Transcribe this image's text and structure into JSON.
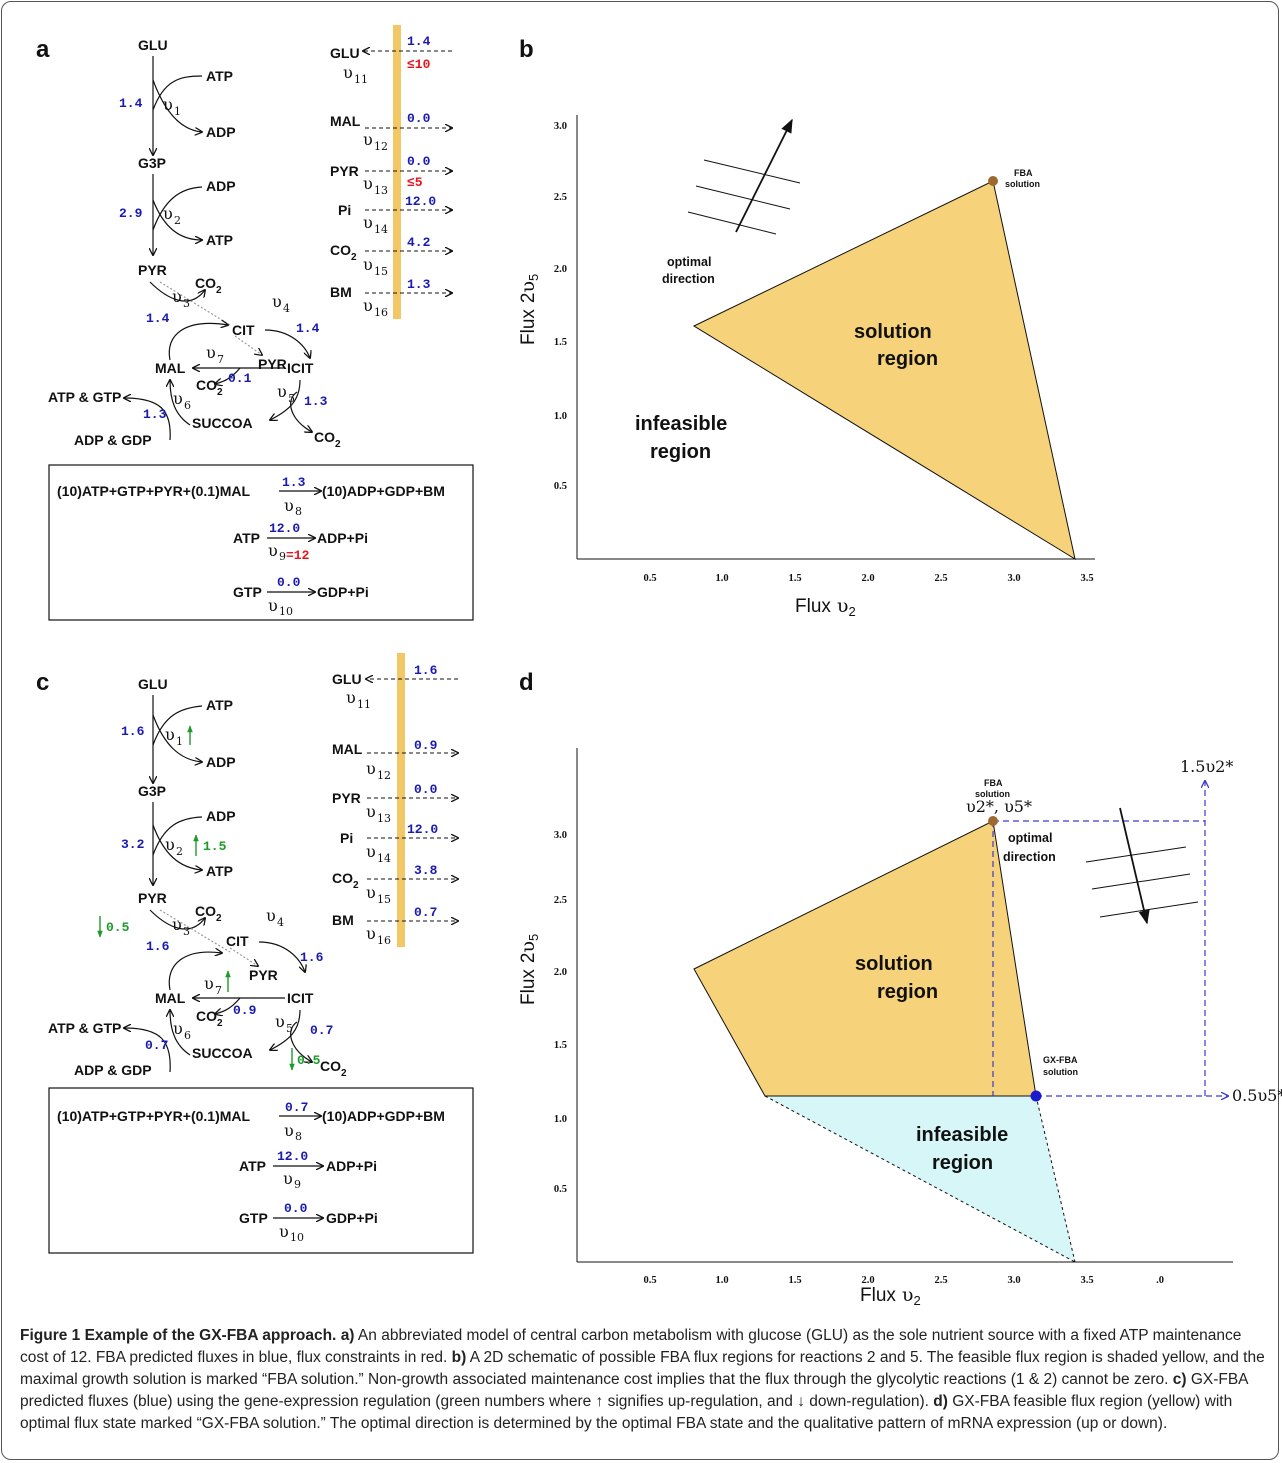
{
  "panels": {
    "a": "a",
    "b": "b",
    "c": "c",
    "d": "d"
  },
  "metabolites": {
    "glu": "GLU",
    "g3p": "G3P",
    "pyr": "PYR",
    "cit": "CIT",
    "icit": "ICIT",
    "mal": "MAL",
    "succoa": "SUCCOA",
    "atp": "ATP",
    "adp": "ADP",
    "co2": "CO",
    "co2_sub": "2",
    "atp_gtp": "ATP & GTP",
    "adp_gdp": "ADP & GDP",
    "pi": "Pi",
    "bm": "BM"
  },
  "nu": "υ",
  "reactions": {
    "r1": "1",
    "r2": "2",
    "r3": "3",
    "r4": "4",
    "r5": "5",
    "r6": "6",
    "r7": "7",
    "r8": "8",
    "r9": "9",
    "r10": "10",
    "r11": "11",
    "r12": "12",
    "r13": "13",
    "r14": "14",
    "r15": "15",
    "r16": "16"
  },
  "boxes": {
    "biomass_lhs": "(10)ATP+GTP+PYR+(0.1)MAL",
    "biomass_rhs": "(10)ADP+GDP+BM",
    "atp_lhs": "ATP",
    "atp_rhs": "ADP+Pi",
    "gtp_lhs": "GTP",
    "gtp_rhs": "GDP+Pi"
  },
  "panel_a": {
    "fluxes": {
      "v1": "1.4",
      "v2": "2.9",
      "v3": "1.4",
      "v4": "1.4",
      "v5": "1.3",
      "v6": "1.3",
      "v7": "0.1",
      "v8": "1.3",
      "v9": "12.0",
      "v10": "0.0",
      "v11": "1.4",
      "v12": "0.0",
      "v13": "0.0",
      "v14": "12.0",
      "v15": "4.2",
      "v16": "1.3"
    },
    "constraints": {
      "v11": "≤10",
      "v13": "≤5",
      "v9": "=12"
    }
  },
  "panel_c": {
    "fluxes": {
      "v1": "1.6",
      "v2": "3.2",
      "v3": "1.6",
      "v4": "1.6",
      "v5": "0.7",
      "v6": "0.7",
      "v7": "0.9",
      "v8": "0.7",
      "v9": "12.0",
      "v10": "0.0",
      "v11": "1.6",
      "v12": "0.9",
      "v13": "0.0",
      "v14": "12.0",
      "v15": "3.8",
      "v16": "0.7"
    },
    "regulation": {
      "v2": "1.5",
      "v3": "0.5",
      "v5": "0.5"
    }
  },
  "plot_b": {
    "xlabel": "Flux",
    "ylabel": "Flux",
    "ylabel_coef": "2",
    "xticks": [
      "0.5",
      "1.0",
      "1.5",
      "2.0",
      "2.5",
      "3.0",
      "3.5"
    ],
    "yticks": [
      "0.5",
      "1.0",
      "1.5",
      "2.0",
      "2.5",
      "3.0"
    ],
    "solution_region": [
      "solution",
      "region"
    ],
    "infeasible_region": [
      "infeasible",
      "region"
    ],
    "fba_label": [
      "FBA",
      "solution"
    ],
    "optimal_direction": [
      "optimal",
      "direction"
    ]
  },
  "plot_d": {
    "xlabel": "Flux",
    "ylabel": "Flux",
    "ylabel_coef": "2",
    "xticks": [
      "0.5",
      "1.0",
      "1.5",
      "2.0",
      "2.5",
      "3.0",
      "3.5",
      ".0"
    ],
    "yticks": [
      "0.5",
      "1.0",
      "1.5",
      "2.0",
      "2.5",
      "3.0"
    ],
    "solution_region": [
      "solution",
      "region"
    ],
    "infeasible_region": [
      "infeasible",
      "region"
    ],
    "fba_label": [
      "FBA",
      "solution"
    ],
    "fba_star": "υ2*, υ5*",
    "gx_label": [
      "GX-FBA",
      "solution"
    ],
    "optimal_direction": [
      "optimal",
      "direction"
    ],
    "bound_top": "1.5υ2*",
    "bound_right": "0.5υ5*"
  },
  "colors": {
    "feasible": "#f6d27a",
    "infeasible": "#d6f6f7",
    "flux_text": "#1a1ab0",
    "constraint_text": "#e8141c",
    "regulation_text": "#1e9a2a",
    "exchange_bar": "#f2c765",
    "fba_point": "#9c6a2f",
    "gx_point": "#1a1acc",
    "bound_lines": "#3a3ad0"
  },
  "caption": {
    "title": "Figure 1 Example of the GX-FBA approach.",
    "a_label": "a)",
    "a_text": " An abbreviated model of central carbon metabolism with glucose (GLU) as the sole nutrient source with a fixed ATP maintenance cost of 12. FBA predicted fluxes in blue, flux constraints in red. ",
    "b_label": "b)",
    "b_text": " A 2D schematic of possible FBA flux regions for reactions 2 and 5. The feasible flux region is shaded yellow, and the maximal growth solution is marked “FBA solution.” Non-growth associated maintenance cost implies that the flux through the glycolytic reactions (1 & 2) cannot be zero. ",
    "c_label": "c)",
    "c_text": " GX-FBA predicted fluxes (blue) using the gene-expression regulation (green numbers where ↑ signifies up-regulation, and ↓ down-regulation). ",
    "d_label": "d)",
    "d_text": " GX-FBA feasible flux region (yellow) with optimal flux state marked “GX-FBA solution.” The optimal direction is determined by the optimal FBA state and the qualitative pattern of mRNA expression (up or down)."
  }
}
